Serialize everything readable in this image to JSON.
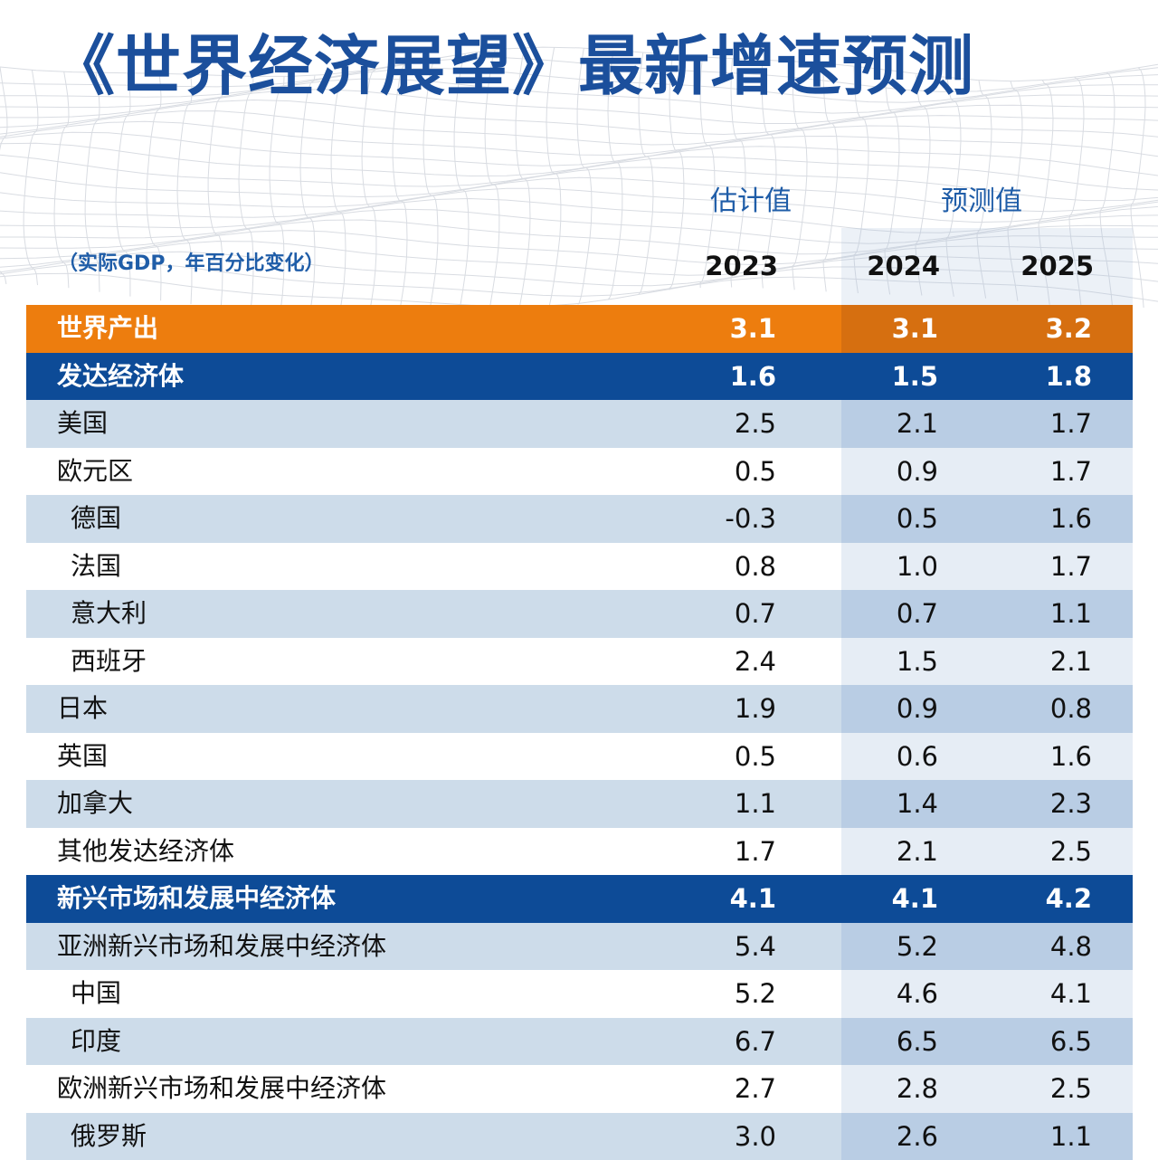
{
  "title": "《世界经济展望》最新增速预测",
  "headers": {
    "estimate_label": "估计值",
    "forecast_label": "预测值",
    "unit_label": "（实际GDP，年百分比变化）",
    "years": [
      "2023",
      "2024",
      "2025"
    ]
  },
  "colors": {
    "title_blue": "#1b4f9c",
    "world_row_orange": "#ed7d0e",
    "group_row_blue": "#0d4b97",
    "light_row": "#cddcea"
  },
  "chart_data": {
    "type": "table",
    "title": "《世界经济展望》最新增速预测",
    "columns": [
      "2023",
      "2024",
      "2025"
    ],
    "column_groups": [
      {
        "label": "估计值",
        "columns": [
          "2023"
        ]
      },
      {
        "label": "预测值",
        "columns": [
          "2024",
          "2025"
        ]
      }
    ],
    "rows": [
      {
        "label": "世界产出",
        "values": [
          "3.1",
          "3.1",
          "3.2"
        ],
        "style": "orange",
        "indent": false
      },
      {
        "label": "发达经济体",
        "values": [
          "1.6",
          "1.5",
          "1.8"
        ],
        "style": "blue",
        "indent": false
      },
      {
        "label": "美国",
        "values": [
          "2.5",
          "2.1",
          "1.7"
        ],
        "style": "light",
        "indent": false
      },
      {
        "label": "欧元区",
        "values": [
          "0.5",
          "0.9",
          "1.7"
        ],
        "style": "white",
        "indent": false
      },
      {
        "label": "德国",
        "values": [
          "-0.3",
          "0.5",
          "1.6"
        ],
        "style": "light",
        "indent": true
      },
      {
        "label": "法国",
        "values": [
          "0.8",
          "1.0",
          "1.7"
        ],
        "style": "white",
        "indent": true
      },
      {
        "label": "意大利",
        "values": [
          "0.7",
          "0.7",
          "1.1"
        ],
        "style": "light",
        "indent": true
      },
      {
        "label": "西班牙",
        "values": [
          "2.4",
          "1.5",
          "2.1"
        ],
        "style": "white",
        "indent": true
      },
      {
        "label": "日本",
        "values": [
          "1.9",
          "0.9",
          "0.8"
        ],
        "style": "light",
        "indent": false
      },
      {
        "label": "英国",
        "values": [
          "0.5",
          "0.6",
          "1.6"
        ],
        "style": "white",
        "indent": false
      },
      {
        "label": "加拿大",
        "values": [
          "1.1",
          "1.4",
          "2.3"
        ],
        "style": "light",
        "indent": false
      },
      {
        "label": "其他发达经济体",
        "values": [
          "1.7",
          "2.1",
          "2.5"
        ],
        "style": "white",
        "indent": false
      },
      {
        "label": "新兴市场和发展中经济体",
        "values": [
          "4.1",
          "4.1",
          "4.2"
        ],
        "style": "blue",
        "indent": false
      },
      {
        "label": "亚洲新兴市场和发展中经济体",
        "values": [
          "5.4",
          "5.2",
          "4.8"
        ],
        "style": "light",
        "indent": false
      },
      {
        "label": "中国",
        "values": [
          "5.2",
          "4.6",
          "4.1"
        ],
        "style": "white",
        "indent": true
      },
      {
        "label": "印度",
        "values": [
          "6.7",
          "6.5",
          "6.5"
        ],
        "style": "light",
        "indent": true
      },
      {
        "label": "欧洲新兴市场和发展中经济体",
        "values": [
          "2.7",
          "2.8",
          "2.5"
        ],
        "style": "white",
        "indent": false
      },
      {
        "label": "俄罗斯",
        "values": [
          "3.0",
          "2.6",
          "1.1"
        ],
        "style": "light",
        "indent": true
      }
    ]
  }
}
